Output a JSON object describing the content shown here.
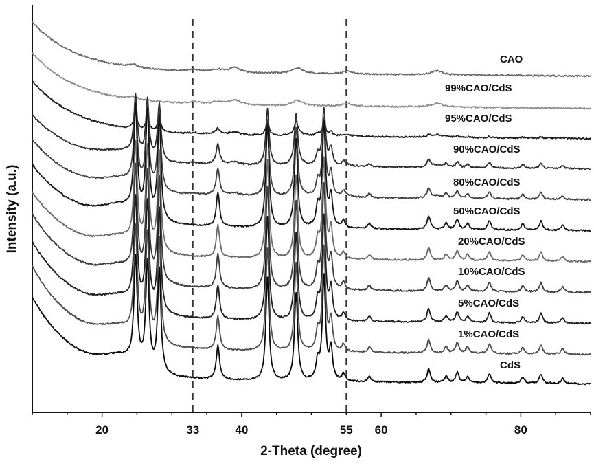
{
  "chart_data": {
    "type": "line",
    "xlabel": "2-Theta (degree)",
    "ylabel": "Intensity (a.u.)",
    "xlim": [
      10,
      90
    ],
    "x_ticks": [
      20,
      33,
      40,
      55,
      60,
      80
    ],
    "reference_lines": [
      33,
      55
    ],
    "grid": false,
    "legend": "inline-right",
    "series": [
      {
        "name": "CAO",
        "color": "#6a6a6a"
      },
      {
        "name": "99%CAO/CdS",
        "color": "#8f8f8f"
      },
      {
        "name": "95%CAO/CdS",
        "color": "#1e1e1e"
      },
      {
        "name": "90%CAO/CdS",
        "color": "#2e2e2e"
      },
      {
        "name": "80%CAO/CdS",
        "color": "#404040"
      },
      {
        "name": "50%CAO/CdS",
        "color": "#141414"
      },
      {
        "name": "20%CAO/CdS",
        "color": "#6a6a6a"
      },
      {
        "name": "10%CAO/CdS",
        "color": "#3c3c3c"
      },
      {
        "name": "5%CAO/CdS",
        "color": "#1e1e1e"
      },
      {
        "name": "1%CAO/CdS",
        "color": "#4e4e4e"
      },
      {
        "name": "CdS",
        "color": "#0a0a0a"
      }
    ]
  }
}
